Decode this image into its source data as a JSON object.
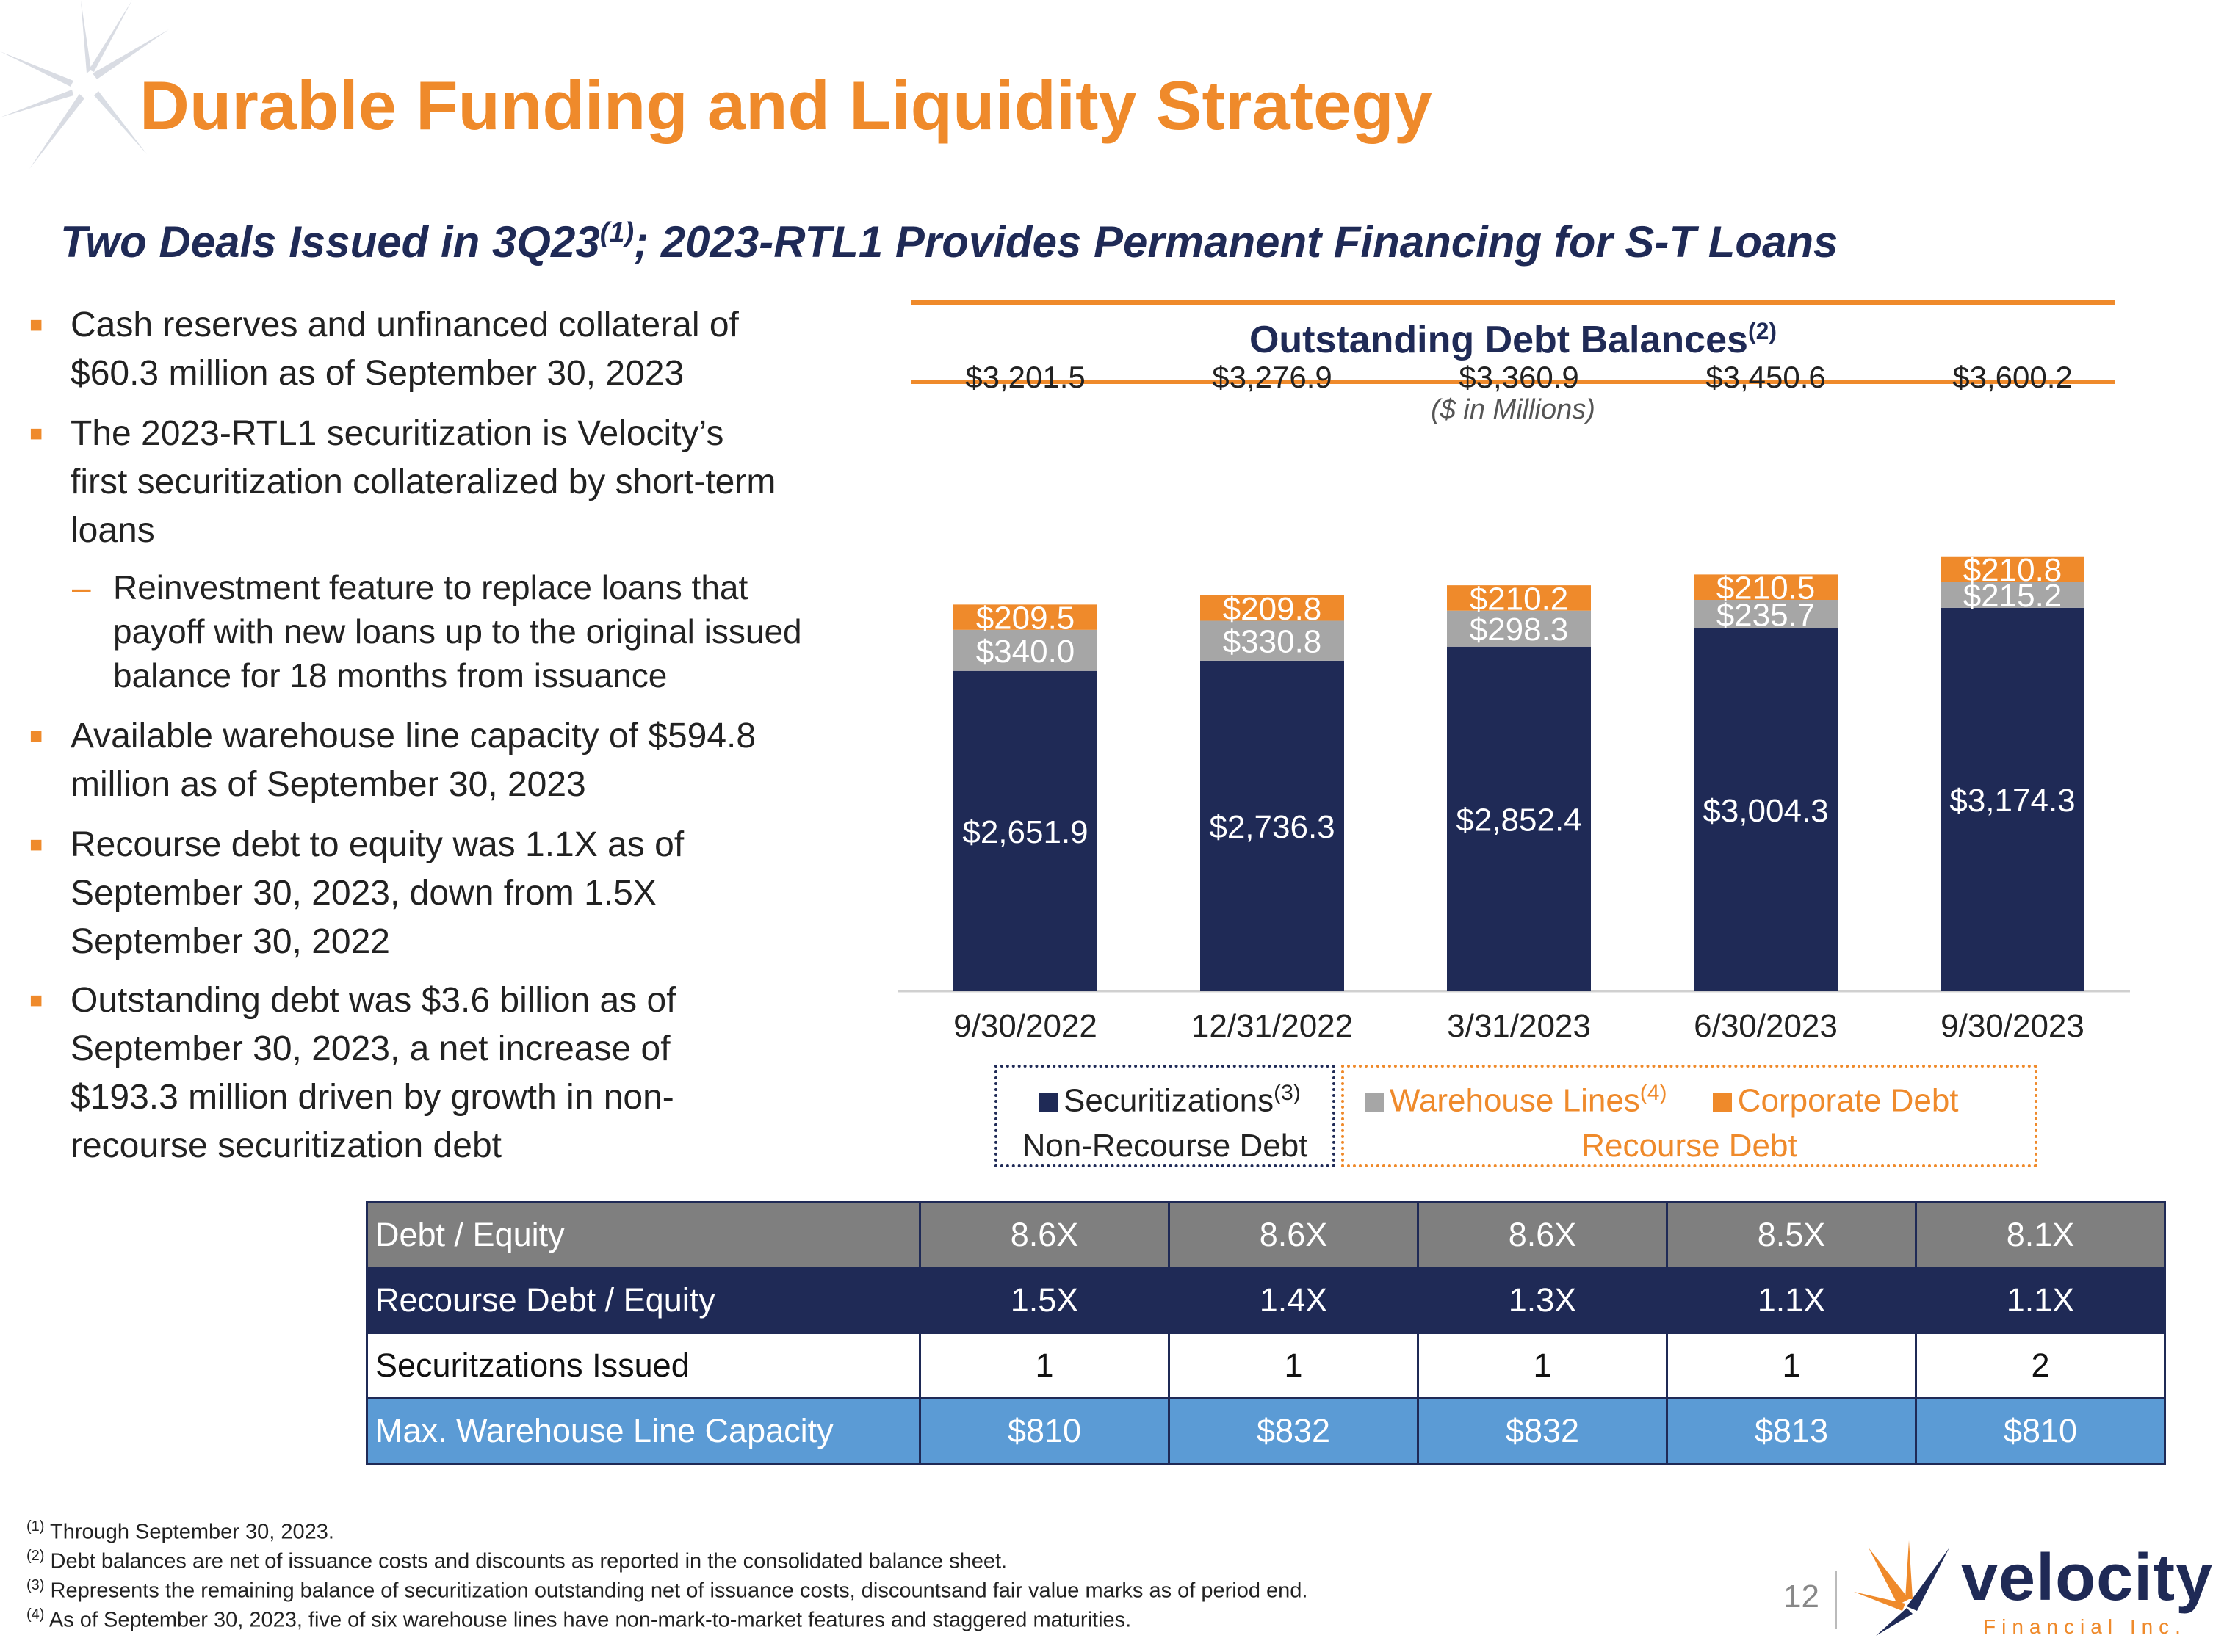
{
  "title": "Durable Funding and Liquidity Strategy",
  "subtitle": {
    "pre": "Two Deals Issued in 3Q23",
    "sup": "(1)",
    "post": "; 2023-RTL1 Provides Permanent Financing for S-T Loans"
  },
  "bullets": [
    {
      "lines": [
        "Cash reserves and unfinanced collateral of",
        "$60.3 million as of September 30, 2023"
      ]
    },
    {
      "lines": [
        "The 2023-RTL1 securitization is Velocity’s",
        "first securitization collateralized by short-term",
        "loans"
      ]
    },
    {
      "lines": [
        "Available warehouse line capacity of $594.8",
        "million as of September 30, 2023"
      ]
    },
    {
      "lines": [
        "Recourse debt to equity was 1.1X as of",
        "September 30, 2023, down from 1.5X",
        "September 30, 2022"
      ]
    },
    {
      "lines": [
        "Outstanding debt was $3.6 billion as of",
        "September 30, 2023, a net increase of",
        "$193.3 million driven by growth in non-",
        "recourse securitization debt"
      ]
    }
  ],
  "sub_bullet": {
    "lines": [
      "Reinvestment feature to replace loans that",
      "payoff with new loans up to the original issued",
      "balance for 18 months from issuance"
    ]
  },
  "chart_data": {
    "type": "bar",
    "title": "Outstanding Debt Balances",
    "title_sup": "(2)",
    "subtitle": "($ in Millions)",
    "categories": [
      "9/30/2022",
      "12/31/2022",
      "3/31/2023",
      "6/30/2023",
      "9/30/2023"
    ],
    "series": [
      {
        "name": "Securitizations",
        "sup": "(3)",
        "color": "#1f2a56",
        "values": [
          2651.9,
          2736.3,
          2852.4,
          3004.3,
          3174.3
        ],
        "labels": [
          "$2,651.9",
          "$2,736.3",
          "$2,852.4",
          "$3,004.3",
          "$3,174.3"
        ]
      },
      {
        "name": "Warehouse Lines",
        "sup": "(4)",
        "color": "#a6a6a6",
        "values": [
          340.0,
          330.8,
          298.3,
          235.7,
          215.2
        ],
        "labels": [
          "$340.0",
          "$330.8",
          "$298.3",
          "$235.7",
          "$215.2"
        ]
      },
      {
        "name": "Corporate Debt",
        "color": "#ef8a2b",
        "values": [
          209.5,
          209.8,
          210.2,
          210.5,
          210.8
        ],
        "labels": [
          "$209.5",
          "$209.8",
          "$210.2",
          "$210.5",
          "$210.8"
        ]
      }
    ],
    "totals": [
      "$3,201.5",
      "$3,276.9",
      "$3,360.9",
      "$3,450.6",
      "$3,600.2"
    ],
    "stacked": true,
    "legend_groups": {
      "non_recourse": "Non-Recourse Debt",
      "recourse": "Recourse Debt"
    }
  },
  "table": {
    "rows": [
      {
        "label": "Debt / Equity",
        "values": [
          "8.6X",
          "8.6X",
          "8.6X",
          "8.5X",
          "8.1X"
        ]
      },
      {
        "label": "Recourse Debt / Equity",
        "values": [
          "1.5X",
          "1.4X",
          "1.3X",
          "1.1X",
          "1.1X"
        ]
      },
      {
        "label": "Securitzations Issued",
        "values": [
          "1",
          "1",
          "1",
          "1",
          "2"
        ]
      },
      {
        "label": "Max. Warehouse Line Capacity",
        "values": [
          "$810",
          "$832",
          "$832",
          "$813",
          "$810"
        ]
      }
    ]
  },
  "footnotes": [
    {
      "sup": "(1)",
      "text": " Through September 30, 2023."
    },
    {
      "sup": "(2)",
      "text": " Debt balances are net of issuance costs and discounts as reported in the consolidated balance sheet."
    },
    {
      "sup": "(3)",
      "text": " Represents the remaining balance of securitization outstanding net of issuance costs, discountsand fair value marks as of period end."
    },
    {
      "sup": "(4)",
      "text": " As of September 30, 2023, five of six warehouse lines have non-mark-to-market features and staggered maturities."
    }
  ],
  "page_number": "12",
  "logo": {
    "name": "velocity",
    "tagline": "Financial Inc."
  },
  "colors": {
    "accent": "#ef8a2b",
    "navy": "#1f2a56",
    "gray": "#a6a6a6",
    "blue": "#5b9bd5"
  }
}
